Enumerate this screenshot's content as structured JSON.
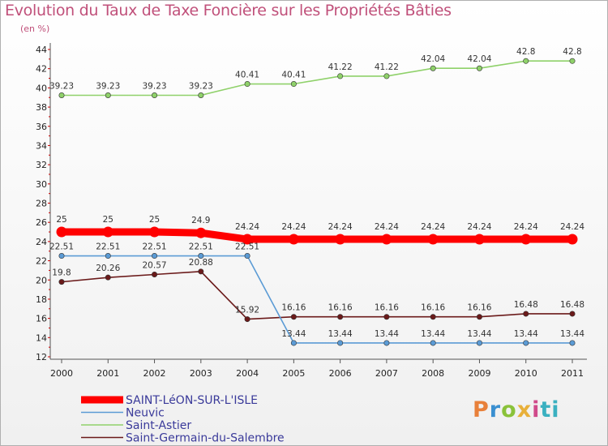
{
  "chart_data": {
    "type": "line",
    "title": "Evolution du Taux de Taxe Foncière sur les Propriétés Bâties",
    "unit_label": "(en %)",
    "categories": [
      "2000",
      "2001",
      "2002",
      "2003",
      "2004",
      "2005",
      "2006",
      "2007",
      "2008",
      "2009",
      "2010",
      "2011"
    ],
    "ylim": [
      12,
      44
    ],
    "yticks": [
      12,
      14,
      16,
      18,
      20,
      22,
      24,
      26,
      28,
      30,
      32,
      34,
      36,
      38,
      40,
      42,
      44
    ],
    "grid": false,
    "legend_position": "bottom-left",
    "series": [
      {
        "name": "SAINT-LéON-SUR-L'ISLE",
        "color": "#ff0000",
        "values": [
          25,
          25,
          25,
          24.9,
          24.24,
          24.24,
          24.24,
          24.24,
          24.24,
          24.24,
          24.24,
          24.24
        ],
        "labels": [
          "25",
          "25",
          "25",
          "24.9",
          "24.24",
          "24.24",
          "24.24",
          "24.24",
          "24.24",
          "24.24",
          "24.24",
          "24.24"
        ]
      },
      {
        "name": "Neuvic",
        "color": "#5b9bd5",
        "values": [
          22.51,
          22.51,
          22.51,
          22.51,
          22.51,
          13.44,
          13.44,
          13.44,
          13.44,
          13.44,
          13.44,
          13.44
        ],
        "labels": [
          "22.51",
          "22.51",
          "22.51",
          "22.51",
          "22.51",
          "13.44",
          "13.44",
          "13.44",
          "13.44",
          "13.44",
          "13.44",
          "13.44"
        ]
      },
      {
        "name": "Saint-Astier",
        "color": "#8fd16a",
        "values": [
          39.23,
          39.23,
          39.23,
          39.23,
          40.41,
          40.41,
          41.22,
          41.22,
          42.04,
          42.04,
          42.8,
          42.8
        ],
        "labels": [
          "39.23",
          "39.23",
          "39.23",
          "39.23",
          "40.41",
          "40.41",
          "41.22",
          "41.22",
          "42.04",
          "42.04",
          "42.8",
          "42.8"
        ]
      },
      {
        "name": "Saint-Germain-du-Salembre",
        "color": "#6b1a1a",
        "values": [
          19.8,
          20.26,
          20.57,
          20.88,
          15.92,
          16.16,
          16.16,
          16.16,
          16.16,
          16.16,
          16.48,
          16.48
        ],
        "labels": [
          "19.8",
          "20.26",
          "20.57",
          "20.88",
          "15.92",
          "16.16",
          "16.16",
          "16.16",
          "16.16",
          "16.16",
          "16.48",
          "16.48"
        ]
      }
    ]
  },
  "logo": {
    "parts": [
      "P",
      "r",
      "o",
      "x",
      "i",
      "ti"
    ]
  }
}
